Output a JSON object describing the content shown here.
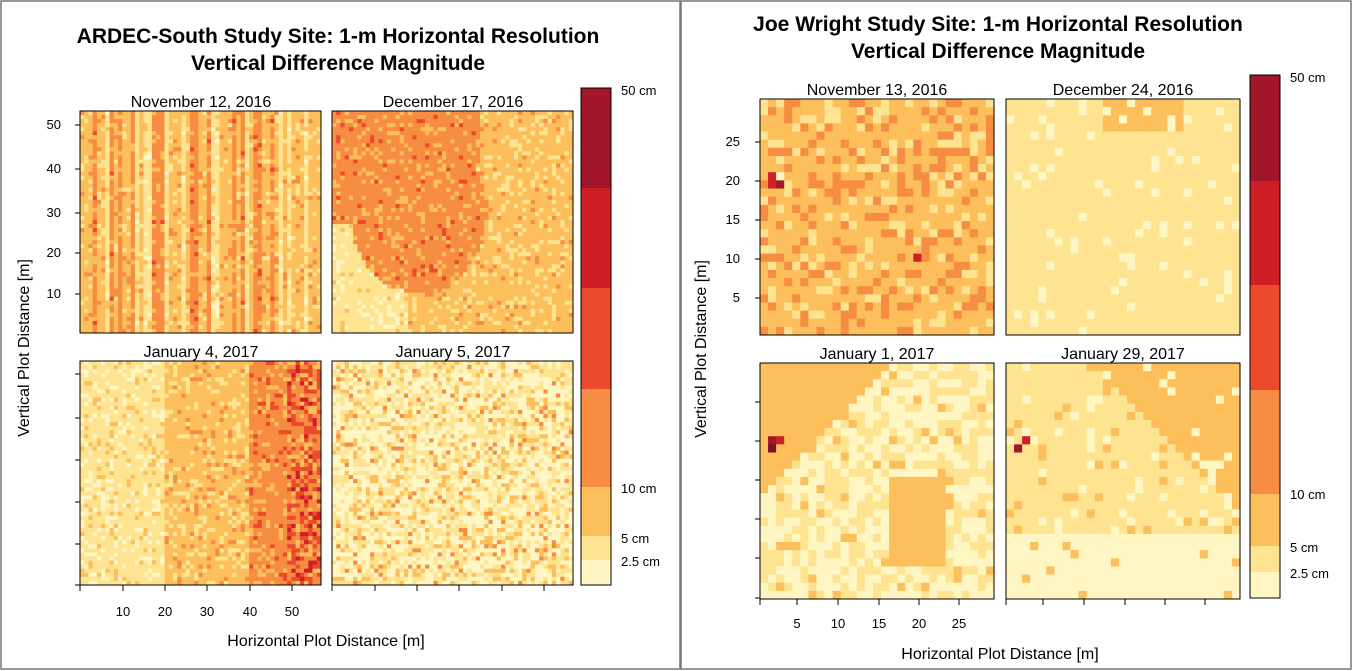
{
  "chart_data": [
    {
      "type": "heatmap",
      "title": "ARDEC-South Study Site: 1-m Horizontal Resolution",
      "subtitle": "Vertical Difference Magnitude",
      "xlabel": "Horizontal Plot Distance [m]",
      "ylabel": "Vertical Plot Distance [m]",
      "x_ticks": [
        "10",
        "20",
        "30",
        "40",
        "50"
      ],
      "y_ticks": [
        "10",
        "20",
        "30",
        "40",
        "50"
      ],
      "xlim": [
        0,
        57
      ],
      "ylim": [
        0,
        55
      ],
      "grid": false,
      "panels": [
        {
          "label": "November 12, 2016",
          "pattern": "stripes",
          "base_class": 3
        },
        {
          "label": "December 17, 2016",
          "pattern": "blob",
          "base_class": 3
        },
        {
          "label": "January 4, 2017",
          "pattern": "gradient",
          "base_class": 3
        },
        {
          "label": "January 5, 2017",
          "pattern": "mottled",
          "base_class": 1
        }
      ],
      "colorbar": {
        "breaks_cm": [
          0,
          2.5,
          5,
          10,
          20,
          30,
          40,
          50
        ],
        "labels": [
          "2.5 cm",
          "5 cm",
          "10 cm",
          "50 cm"
        ],
        "colors": [
          "#fff6c3",
          "#fee491",
          "#fcbf5c",
          "#f68d42",
          "#ec4a2b",
          "#cf1f26",
          "#a11629",
          "#7e1129"
        ]
      }
    },
    {
      "type": "heatmap",
      "title": "Joe Wright Study Site: 1-m Horizontal Resolution",
      "subtitle": "Vertical Difference Magnitude",
      "xlabel": "Horizontal Plot Distance [m]",
      "ylabel": "Vertical Plot Distance [m]",
      "x_ticks": [
        "5",
        "10",
        "15",
        "20",
        "25"
      ],
      "y_ticks": [
        "5",
        "10",
        "15",
        "20",
        "25"
      ],
      "xlim": [
        0,
        29
      ],
      "ylim": [
        0,
        29
      ],
      "grid": false,
      "panels": [
        {
          "label": "November 13, 2016",
          "pattern": "mixed",
          "base_class": 2
        },
        {
          "label": "December 24, 2016",
          "pattern": "smooth",
          "base_class": 1
        },
        {
          "label": "January 1, 2017",
          "pattern": "patchy",
          "base_class": 1
        },
        {
          "label": "January 29, 2017",
          "pattern": "diagonal",
          "base_class": 1
        }
      ],
      "colorbar": {
        "breaks_cm": [
          0,
          2.5,
          5,
          10,
          20,
          30,
          40,
          50
        ],
        "labels": [
          "2.5 cm",
          "5 cm",
          "10 cm",
          "50 cm"
        ],
        "colors": [
          "#fff6c3",
          "#fee491",
          "#fcbf5c",
          "#f68d42",
          "#ec4a2b",
          "#cf1f26",
          "#a11629",
          "#7e1129"
        ]
      }
    }
  ]
}
